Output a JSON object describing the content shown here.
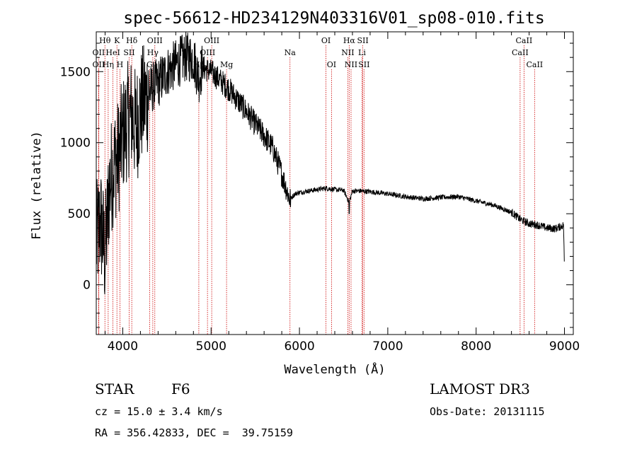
{
  "chart_data": {
    "type": "line",
    "title": "spec-56612-HD234129N403316V01_sp08-010.fits",
    "xlabel": "Wavelength (Å)",
    "ylabel": "Flux (relative)",
    "xlim": [
      3700,
      9100
    ],
    "ylim": [
      -350,
      1780
    ],
    "x_ticks": [
      4000,
      5000,
      6000,
      7000,
      8000,
      9000
    ],
    "y_ticks": [
      0,
      500,
      1000,
      1500
    ],
    "x_minor_step": 200,
    "y_minor_step": 100,
    "series": [
      {
        "name": "flux",
        "anchor_points": [
          [
            3700,
            300
          ],
          [
            3750,
            450
          ],
          [
            3800,
            200
          ],
          [
            3850,
            700
          ],
          [
            3900,
            850
          ],
          [
            3950,
            900
          ],
          [
            4000,
            1050
          ],
          [
            4050,
            1150
          ],
          [
            4100,
            1200
          ],
          [
            4150,
            1100
          ],
          [
            4200,
            1250
          ],
          [
            4250,
            1300
          ],
          [
            4300,
            1350
          ],
          [
            4350,
            1400
          ],
          [
            4400,
            1420
          ],
          [
            4500,
            1500
          ],
          [
            4600,
            1550
          ],
          [
            4700,
            1600
          ],
          [
            4800,
            1600
          ],
          [
            4860,
            1450
          ],
          [
            4900,
            1530
          ],
          [
            5000,
            1500
          ],
          [
            5100,
            1440
          ],
          [
            5200,
            1380
          ],
          [
            5300,
            1300
          ],
          [
            5400,
            1220
          ],
          [
            5500,
            1130
          ],
          [
            5600,
            1050
          ],
          [
            5700,
            960
          ],
          [
            5800,
            780
          ],
          [
            5850,
            680
          ],
          [
            5890,
            600
          ],
          [
            5950,
            640
          ],
          [
            6000,
            650
          ],
          [
            6100,
            660
          ],
          [
            6200,
            670
          ],
          [
            6300,
            680
          ],
          [
            6400,
            670
          ],
          [
            6500,
            665
          ],
          [
            6563,
            580
          ],
          [
            6600,
            660
          ],
          [
            6700,
            660
          ],
          [
            6800,
            655
          ],
          [
            7000,
            640
          ],
          [
            7200,
            620
          ],
          [
            7400,
            605
          ],
          [
            7600,
            615
          ],
          [
            7800,
            620
          ],
          [
            8000,
            590
          ],
          [
            8200,
            560
          ],
          [
            8400,
            510
          ],
          [
            8500,
            460
          ],
          [
            8600,
            430
          ],
          [
            8700,
            420
          ],
          [
            8800,
            400
          ],
          [
            8900,
            395
          ],
          [
            8990,
            420
          ],
          [
            9000,
            100
          ]
        ]
      }
    ],
    "spectral_lines": [
      {
        "label": "Hθ",
        "x": 3798,
        "row": 0
      },
      {
        "label": "OII",
        "x": 3727,
        "row": 1
      },
      {
        "label": "OII",
        "x": 3727,
        "row": 2
      },
      {
        "label": "Hη",
        "x": 3835,
        "row": 2
      },
      {
        "label": "HeI",
        "x": 3889,
        "row": 1
      },
      {
        "label": "K",
        "x": 3934,
        "row": 0
      },
      {
        "label": "H",
        "x": 3968,
        "row": 2
      },
      {
        "label": "SII",
        "x": 4072,
        "row": 1
      },
      {
        "label": "Hδ",
        "x": 4102,
        "row": 0
      },
      {
        "label": "OIII",
        "x": 4363,
        "row": 0
      },
      {
        "label": "Hγ",
        "x": 4340,
        "row": 1
      },
      {
        "label": "G",
        "x": 4304,
        "row": 2
      },
      {
        "label": "Hβ",
        "x": 4861,
        "row": 2
      },
      {
        "label": "OIII",
        "x": 5007,
        "row": 0
      },
      {
        "label": "OIII",
        "x": 4959,
        "row": 1
      },
      {
        "label": "Mg",
        "x": 5175,
        "row": 2
      },
      {
        "label": "Na",
        "x": 5893,
        "row": 1
      },
      {
        "label": "OI",
        "x": 6300,
        "row": 0
      },
      {
        "label": "OI",
        "x": 6363,
        "row": 2
      },
      {
        "label": "Hα",
        "x": 6563,
        "row": 0
      },
      {
        "label": "NII",
        "x": 6548,
        "row": 1
      },
      {
        "label": "NII",
        "x": 6584,
        "row": 2
      },
      {
        "label": "SII",
        "x": 6717,
        "row": 0
      },
      {
        "label": "Li",
        "x": 6708,
        "row": 1
      },
      {
        "label": "SII",
        "x": 6731,
        "row": 2
      },
      {
        "label": "CaII",
        "x": 8542,
        "row": 0
      },
      {
        "label": "CaII",
        "x": 8498,
        "row": 1
      },
      {
        "label": "CaII",
        "x": 8662,
        "row": 2
      }
    ]
  },
  "info": {
    "object_class": "STAR",
    "subclass": "F6",
    "cz": "cz = 15.0 ± 3.4 km/s",
    "coords": "RA = 356.42833, DEC =  39.75159",
    "survey": "LAMOST DR3",
    "obs_date": "Obs-Date: 20131115"
  },
  "colors": {
    "spectrum": "#000000",
    "line_marker": "#cc0000",
    "axis": "#000000"
  }
}
